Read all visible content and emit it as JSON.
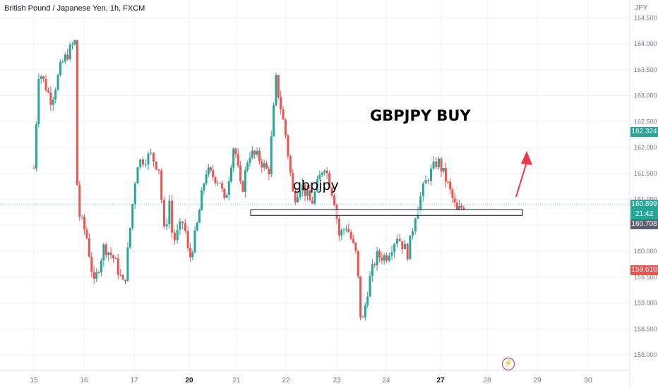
{
  "chart_data": {
    "type": "candlestick",
    "symbol": "British Pound / Japanese Yen, 1h, FXCM",
    "currency": "JPY",
    "annotations": {
      "title": "GBPJPY BUY",
      "label": "gbpjpy",
      "zone_low": 160.69,
      "zone_high": 160.8
    },
    "y_ticks": [
      "164.500",
      "164.000",
      "163.500",
      "163.000",
      "162.500",
      "162.000",
      "161.500",
      "161.000",
      "160.500",
      "160.000",
      "159.500",
      "159.000",
      "158.500",
      "158.000"
    ],
    "ylim": [
      157.85,
      164.7
    ],
    "x_ticks": [
      "15",
      "16",
      "17",
      "20",
      "21",
      "22",
      "23",
      "24",
      "27",
      "28",
      "29",
      "30"
    ],
    "price_labels": {
      "current": "160.899",
      "countdown": "21:42",
      "level_high": "162.324",
      "level_mid": "160.708",
      "level_low": "159.618"
    },
    "path": [
      [
        0,
        161.6
      ],
      [
        0.1,
        163.5
      ],
      [
        0.35,
        162.9
      ],
      [
        0.55,
        163.6
      ],
      [
        0.73,
        163.9
      ],
      [
        0.83,
        164.05
      ],
      [
        0.87,
        160.8
      ],
      [
        1.05,
        160.3
      ],
      [
        1.2,
        159.35
      ],
      [
        1.4,
        160.1
      ],
      [
        1.6,
        159.85
      ],
      [
        1.8,
        159.3
      ],
      [
        2.05,
        161.7
      ],
      [
        2.3,
        161.85
      ],
      [
        2.45,
        161.6
      ],
      [
        2.55,
        160.3
      ],
      [
        2.65,
        161.05
      ],
      [
        2.7,
        160.15
      ],
      [
        2.9,
        160.6
      ],
      [
        3.0,
        159.8
      ],
      [
        3.15,
        160.4
      ],
      [
        3.35,
        161.55
      ],
      [
        3.65,
        161.35
      ],
      [
        3.75,
        160.9
      ],
      [
        3.95,
        162.1
      ],
      [
        4.1,
        161.1
      ],
      [
        4.25,
        161.9
      ],
      [
        4.45,
        161.8
      ],
      [
        4.65,
        161.5
      ],
      [
        4.8,
        163.3
      ],
      [
        5.0,
        162.2
      ],
      [
        5.15,
        161.0
      ],
      [
        5.3,
        161.3
      ],
      [
        5.5,
        160.9
      ],
      [
        5.75,
        161.7
      ],
      [
        5.95,
        161.0
      ],
      [
        6.05,
        160.3
      ],
      [
        6.2,
        160.5
      ],
      [
        6.4,
        159.9
      ],
      [
        6.5,
        158.5
      ],
      [
        6.65,
        159.4
      ],
      [
        6.8,
        159.9
      ],
      [
        7.0,
        159.9
      ],
      [
        7.2,
        160.3
      ],
      [
        7.4,
        159.95
      ],
      [
        7.55,
        160.8
      ],
      [
        7.75,
        161.4
      ],
      [
        7.95,
        161.75
      ],
      [
        8.15,
        161.3
      ],
      [
        8.35,
        160.75
      ],
      [
        8.5,
        160.9
      ]
    ]
  },
  "colors": {
    "up": "#26a69a",
    "down": "#ef5350",
    "grid": "#f0f3fa",
    "axis_text": "#787b86",
    "current_tag": "#26a69a",
    "level_high_tag": "#26a69a",
    "level_mid_tag": "#5d606b",
    "level_low_tag": "#ef5350",
    "arrow": "#f23645"
  },
  "icons": {
    "alert": "lightning-icon"
  }
}
